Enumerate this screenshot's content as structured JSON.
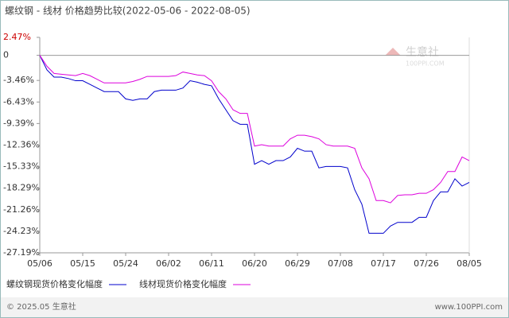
{
  "chart_data": {
    "type": "line",
    "title": "螺纹钢 - 线材 价格趋势比较(2022-05-06 - 2022-08-05)",
    "watermark": "生意社",
    "watermark_sub": "100PPI.COM",
    "footer_left": "© 2025.05 生意社",
    "footer_right": "www.100PPI.com",
    "categories": [
      "05/06",
      null,
      null,
      null,
      null,
      null,
      "05/15",
      null,
      null,
      null,
      null,
      null,
      "05/24",
      null,
      null,
      null,
      null,
      null,
      "06/02",
      null,
      null,
      null,
      null,
      null,
      "06/11",
      null,
      null,
      null,
      null,
      null,
      "06/20",
      null,
      null,
      null,
      null,
      null,
      "06/29",
      null,
      null,
      null,
      null,
      null,
      "07/08",
      null,
      null,
      null,
      null,
      null,
      "07/17",
      null,
      null,
      null,
      null,
      null,
      "07/26",
      null,
      null,
      null,
      null,
      null,
      "08/05"
    ],
    "series": [
      {
        "name": "螺纹钢现货价格变化幅度",
        "color": "#0000cc",
        "values": [
          0,
          -2,
          -3,
          -3,
          -3.2,
          -3.5,
          -3.5,
          -4,
          -4.5,
          -5,
          -5,
          -5,
          -6,
          -6.2,
          -6,
          -6,
          -5,
          -4.8,
          -4.8,
          -4.8,
          -4.5,
          -3.5,
          -3.7,
          -4,
          -4.2,
          -6,
          -7.5,
          -9,
          -9.5,
          -9.5,
          -15,
          -14.5,
          -15,
          -14.5,
          -14.5,
          -14,
          -12.8,
          -13.2,
          -13.2,
          -15.5,
          -15.3,
          -15.3,
          -15.3,
          -15.5,
          -18.5,
          -20.5,
          -24.5,
          -24.5,
          -24.5,
          -23.5,
          -23,
          -23,
          -23,
          -22.3,
          -22.3,
          -20,
          -18.8,
          -18.8,
          -17,
          -18,
          -17.5
        ]
      },
      {
        "name": "线材现货价格变化幅度",
        "color": "#dd00dd",
        "values": [
          0,
          -1.5,
          -2.5,
          -2.6,
          -2.7,
          -2.8,
          -2.5,
          -2.8,
          -3.3,
          -3.8,
          -3.8,
          -3.8,
          -3.8,
          -3.6,
          -3.3,
          -2.9,
          -2.9,
          -2.9,
          -2.9,
          -2.8,
          -2.3,
          -2.5,
          -2.7,
          -2.8,
          -3.5,
          -5,
          -6,
          -7.5,
          -8,
          -8,
          -12.5,
          -12.3,
          -12.5,
          -12.5,
          -12.5,
          -11.5,
          -11,
          -11,
          -11.2,
          -11.5,
          -12.3,
          -12.5,
          -12.5,
          -12.5,
          -12.8,
          -15.5,
          -17,
          -20,
          -20,
          -20.3,
          -19.3,
          -19.2,
          -19.2,
          -19,
          -19,
          -18.5,
          -17.5,
          -16,
          -16,
          -14,
          -14.5
        ]
      }
    ],
    "ylim": [
      -27.19,
      2.47
    ],
    "yticks": [
      {
        "value": 2.47,
        "label": "2.47%"
      },
      0,
      {
        "value": -3.46,
        "label": "-3.46%"
      },
      {
        "value": -6.43,
        "label": "-6.43%"
      },
      {
        "value": -9.39,
        "label": "-9.39%"
      },
      {
        "value": -12.36,
        "label": "-12.36%"
      },
      {
        "value": -15.33,
        "label": "-15.33%"
      },
      {
        "value": -18.29,
        "label": "-18.29%"
      },
      {
        "value": -21.26,
        "label": "-21.26%"
      },
      {
        "value": -24.23,
        "label": "-24.23%"
      },
      {
        "value": -27.19,
        "label": "-27.19%"
      }
    ]
  }
}
